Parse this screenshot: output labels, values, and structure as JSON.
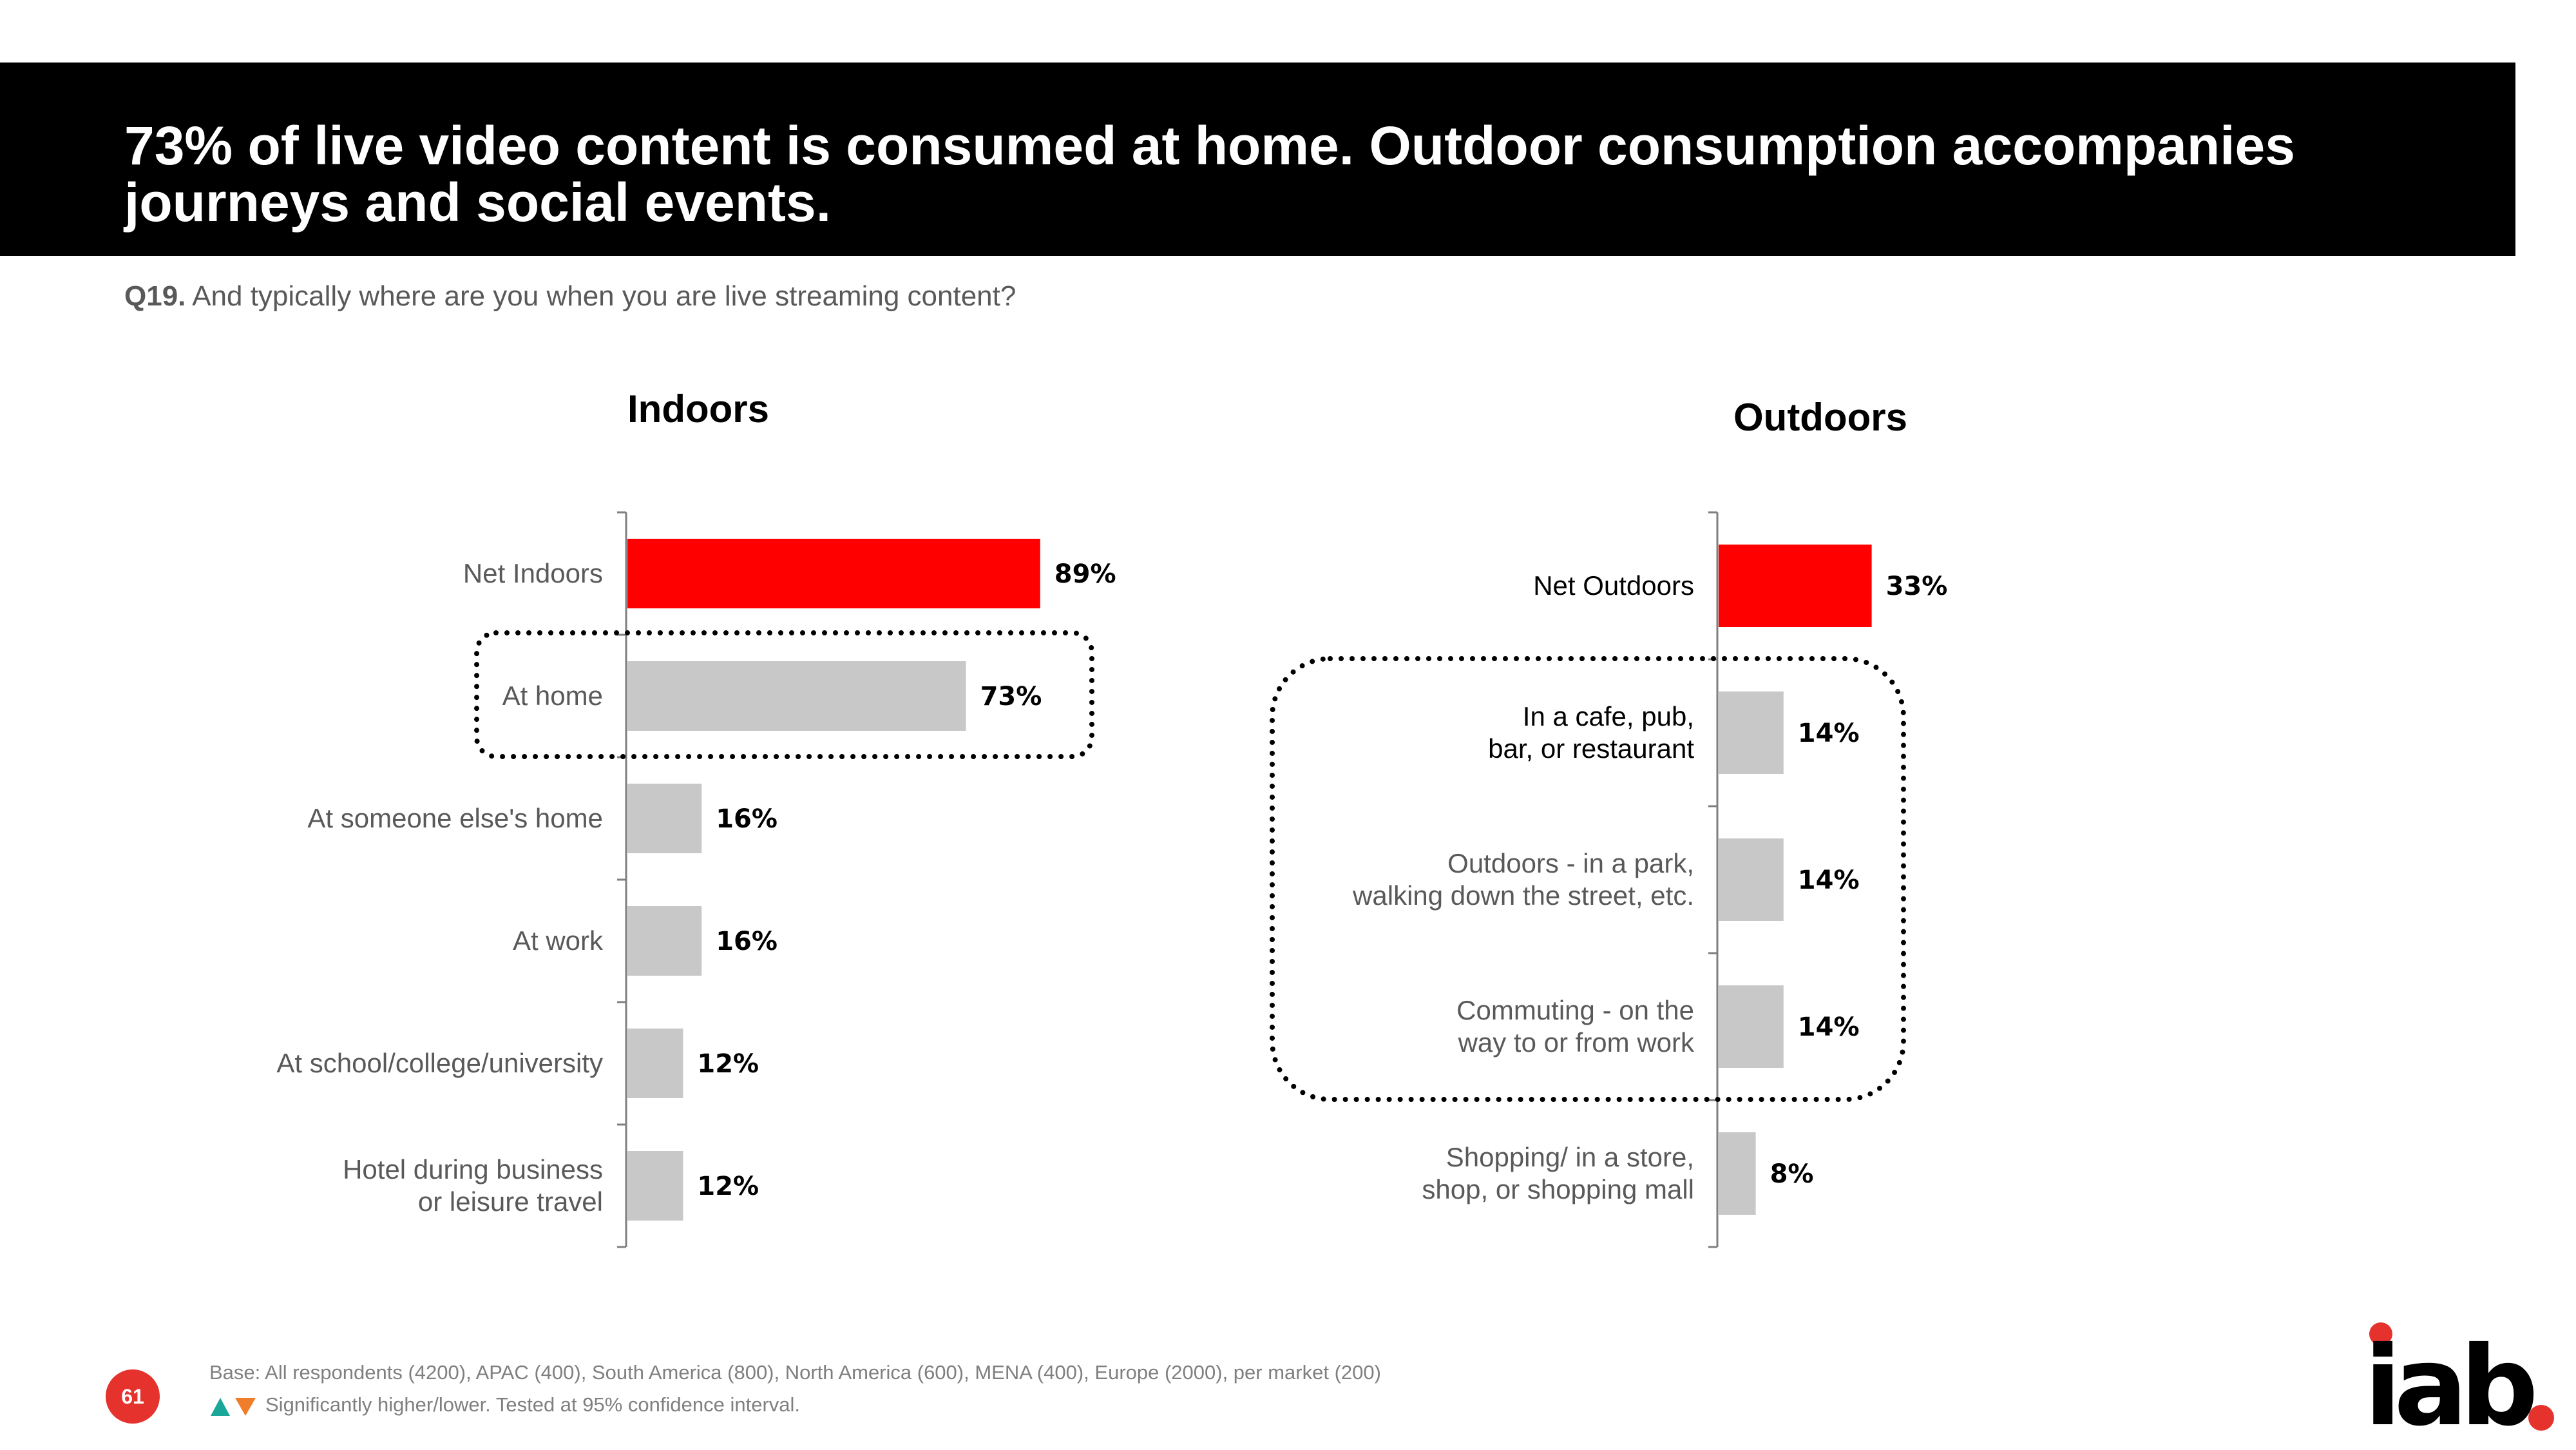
{
  "title": "73% of live video content is consumed at home. Outdoor consumption accompanies journeys and social events.",
  "question": {
    "code": "Q19.",
    "text": "And typically where are you when you are live streaming content?"
  },
  "chart_data": [
    {
      "type": "bar",
      "orientation": "horizontal",
      "title": "Indoors",
      "categories": [
        "Net Indoors",
        "At home",
        "At someone else's home",
        "At work",
        "At school/college/university",
        "Hotel during business or leisure travel"
      ],
      "values": [
        89,
        73,
        16,
        16,
        12,
        12
      ],
      "value_labels": [
        "89%",
        "73%",
        "16%",
        "16%",
        "12%",
        "12%"
      ],
      "unit": "%",
      "xlim": [
        0,
        100
      ],
      "highlighted": [
        "Net Indoors"
      ],
      "annotated_group": [
        "At home"
      ],
      "colors": {
        "net": "#ff0000",
        "bar": "#c8c8c8"
      }
    },
    {
      "type": "bar",
      "orientation": "horizontal",
      "title": "Outdoors",
      "categories": [
        "Net Outdoors",
        "In a cafe, pub, bar, or restaurant",
        "Outdoors - in a park, walking down the street, etc.",
        "Commuting - on the way to or from work",
        "Shopping/ in a store, shop, or shopping mall"
      ],
      "values": [
        33,
        14,
        14,
        14,
        8
      ],
      "value_labels": [
        "33%",
        "14%",
        "14%",
        "14%",
        "8%"
      ],
      "unit": "%",
      "xlim": [
        0,
        100
      ],
      "highlighted": [
        "Net Outdoors"
      ],
      "annotated_group": [
        "In a cafe, pub, bar, or restaurant",
        "Outdoors - in a park, walking down the street, etc.",
        "Commuting - on the way to or from work"
      ],
      "colors": {
        "net": "#ff0000",
        "bar": "#c8c8c8"
      }
    }
  ],
  "footnote": {
    "base": "Base: All respondents (4200), APAC (400), South America (800), North America (600), MENA (400), Europe (2000), per market (200)",
    "significance": "Significantly higher/lower. Tested at 95% confidence interval."
  },
  "page_number": "61",
  "logo_text": "iab",
  "colors": {
    "brand_red": "#e5322d",
    "up_arrow": "#1aa79a",
    "down_arrow": "#f07d2a"
  }
}
